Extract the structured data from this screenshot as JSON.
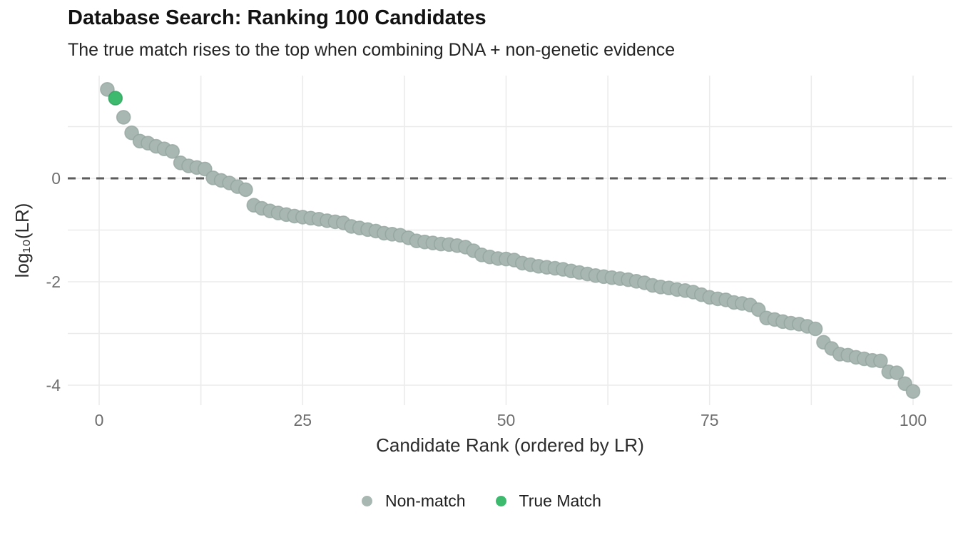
{
  "header": {
    "title": "Database Search: Ranking 100 Candidates",
    "subtitle": "The true match rises to the top when combining DNA + non-genetic evidence"
  },
  "chart_data": {
    "type": "scatter",
    "title": "Database Search: Ranking 100 Candidates",
    "subtitle": "The true match rises to the top when combining DNA + non-genetic evidence",
    "xlabel": "Candidate Rank (ordered by LR)",
    "ylabel": "log₁₀(LR)",
    "x_rule": "rank = index + 1 (ranks 1 through 100)",
    "xlim": [
      -4,
      104.5
    ],
    "ylim": [
      -4.4,
      2.0
    ],
    "x_ticks": [
      0,
      25,
      50,
      75,
      100
    ],
    "y_ticks": [
      0,
      -2,
      -4
    ],
    "x_minor_grid": [
      12.5,
      37.5,
      62.5,
      87.5
    ],
    "y_minor_grid": [
      1,
      -1,
      -3
    ],
    "grid": true,
    "legend_position": "bottom-center",
    "threshold_line": {
      "y": 0,
      "style": "dashed"
    },
    "true_match_rank": 2,
    "series": [
      {
        "name": "Non-match",
        "role": "non_match"
      },
      {
        "name": "True Match",
        "role": "true_match"
      }
    ],
    "values": [
      1.72,
      1.55,
      1.18,
      0.88,
      0.72,
      0.68,
      0.62,
      0.57,
      0.52,
      0.3,
      0.24,
      0.21,
      0.18,
      0.01,
      -0.04,
      -0.09,
      -0.16,
      -0.22,
      -0.52,
      -0.58,
      -0.63,
      -0.67,
      -0.7,
      -0.73,
      -0.75,
      -0.77,
      -0.79,
      -0.82,
      -0.84,
      -0.86,
      -0.93,
      -0.96,
      -0.99,
      -1.02,
      -1.06,
      -1.08,
      -1.1,
      -1.15,
      -1.21,
      -1.23,
      -1.25,
      -1.27,
      -1.28,
      -1.3,
      -1.33,
      -1.4,
      -1.48,
      -1.52,
      -1.55,
      -1.56,
      -1.58,
      -1.64,
      -1.67,
      -1.7,
      -1.72,
      -1.74,
      -1.76,
      -1.79,
      -1.82,
      -1.85,
      -1.88,
      -1.9,
      -1.92,
      -1.94,
      -1.96,
      -1.99,
      -2.02,
      -2.07,
      -2.1,
      -2.12,
      -2.15,
      -2.17,
      -2.2,
      -2.25,
      -2.3,
      -2.33,
      -2.35,
      -2.4,
      -2.42,
      -2.45,
      -2.54,
      -2.7,
      -2.73,
      -2.77,
      -2.8,
      -2.82,
      -2.86,
      -2.91,
      -3.17,
      -3.29,
      -3.4,
      -3.42,
      -3.46,
      -3.49,
      -3.52,
      -3.53,
      -3.74,
      -3.76,
      -3.97,
      -4.12
    ]
  },
  "legend": {
    "items": [
      {
        "label": "Non-match",
        "color": "#a9b7b2"
      },
      {
        "label": "True Match",
        "color": "#3eba6f"
      }
    ]
  },
  "colors": {
    "non_match_fill": "#a9b7b2",
    "non_match_stroke": "#91a39e",
    "true_match_fill": "#3eba6f",
    "true_match_stroke": "#2d9f5b",
    "gridline": "#ebebeb",
    "threshold_dash": "#5c5c5c",
    "tick_label": "#6e6e6e",
    "axis_title": "#2d2d2d",
    "title": "#121212"
  }
}
